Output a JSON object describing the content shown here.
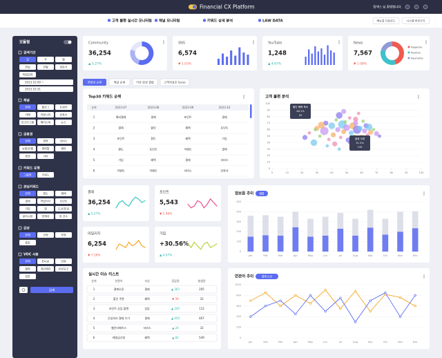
{
  "header": {
    "title": "Financial CX Platform",
    "welcome": "탐색스 님 환영합니다."
  },
  "nav": {
    "items": [
      "고객 불편 실시간 모니터링",
      "채널 모니터링",
      "키워드 상세 분석",
      "LAW DATA"
    ],
    "buttons": [
      "메뉴얼 다운로드",
      "시스템 바로가기"
    ]
  },
  "sidebar": {
    "title": "모듈형",
    "sections": [
      {
        "title": "검색기간",
        "options": [
          "일",
          "주",
          "월",
          "전일",
          "전월",
          "전분기",
          "직접입력"
        ],
        "dates": [
          "2023.10.09 ~",
          "2023.10.31"
        ]
      },
      {
        "title": "채널",
        "options": [
          "전체",
          "블로그",
          "트위터",
          "카페",
          "커뮤니티",
          "유튜브",
          "인스타그램",
          "페이스북",
          "뉴스"
        ]
      },
      {
        "title": "금융권",
        "options": [
          "전체",
          "생명",
          "서비스",
          "보험/은행",
          "캐피탈",
          "예탁",
          "증권",
          "기타"
        ]
      },
      {
        "title": "키워드 유형",
        "options": [
          "그룹명",
          "키워드"
        ]
      },
      {
        "title": "관심키워드",
        "options": [
          "전체",
          "편도",
          "혜택",
          "결제",
          "적립리더",
          "포인트",
          "가입",
          "앱",
          "도난/분실",
          "관리시장",
          "연체자",
          "외 건수"
        ]
      },
      {
        "title": "감성",
        "options": [
          "전체",
          "긍정",
          "부정",
          "중립"
        ]
      },
      {
        "title": "VOC 사용",
        "options": [
          "전체",
          "Excel",
          "민원",
          "불편",
          "개선제안",
          "보상요구",
          "칭찬"
        ]
      }
    ],
    "search": "검색"
  },
  "kpis": [
    {
      "name": "Community",
      "value": "36,254",
      "change": "▲ 5.27%",
      "chart": {
        "type": "donut",
        "values": [
          55,
          25,
          20
        ],
        "colors": [
          "#5b6cf0",
          "#aab3f5",
          "#e3e6fb"
        ]
      }
    },
    {
      "name": "SNS",
      "value": "6,574",
      "change": "▼ 1.03%",
      "chart": {
        "type": "bar",
        "values": [
          30,
          55,
          40,
          70,
          45,
          85,
          60,
          50
        ],
        "color": "#5b6cf0",
        "ylim": [
          0,
          100
        ]
      }
    },
    {
      "name": "YouTube",
      "value": "1,248",
      "change": "▲ 4.67%",
      "chart": {
        "type": "bar",
        "values": [
          40,
          75,
          55,
          90,
          65,
          80,
          50,
          95,
          70,
          60
        ],
        "color": "#5b6cf0",
        "ylim": [
          0,
          100
        ]
      }
    },
    {
      "name": "News",
      "value": "7,567",
      "change": "▼ 1.08%",
      "chart": {
        "type": "donut",
        "values": [
          45,
          35,
          20
        ],
        "colors": [
          "#ef5b4f",
          "#3fc1c9",
          "#8e9bd6"
        ],
        "legend": [
          "Negative",
          "Positive",
          "Neutrality"
        ]
      }
    }
  ],
  "tabs": [
    "연관성 순위",
    "채널 순위",
    "이상 감성 결합",
    "고객지표초 Issue"
  ],
  "keyword_ranking": {
    "title": "Top30 키워드 순위",
    "headers": [
      "순위",
      "2023-07",
      "2023-08",
      "2023-09",
      "2023-10"
    ],
    "rows": [
      [
        "1",
        "해외결제",
        "결제",
        "포인트",
        "결제"
      ],
      [
        "2",
        "결제",
        "할인",
        "혜택",
        "포인트"
      ],
      [
        "3",
        "포인트",
        "환도",
        "혜택",
        "가입"
      ],
      [
        "4",
        "환도",
        "포인트",
        "이벤트",
        "결제"
      ],
      [
        "5",
        "가입",
        "혜택",
        "결제",
        "서비스"
      ],
      [
        "6",
        "이벤트",
        "이벤트",
        "서비스",
        "인증서"
      ]
    ]
  },
  "complaint_analysis": {
    "title": "고객 불편 분석",
    "type": "scatter",
    "x": [
      22,
      25,
      28,
      30,
      32,
      35,
      36,
      38,
      40,
      41,
      43,
      44,
      45,
      46,
      47,
      48,
      49,
      50,
      51,
      52,
      53,
      54,
      55,
      56,
      57,
      58,
      59,
      60,
      61,
      62,
      63,
      64,
      65,
      66,
      68,
      70,
      72,
      42,
      37,
      33,
      29,
      48,
      52,
      56,
      45
    ],
    "y": [
      48,
      55,
      40,
      62,
      50,
      58,
      70,
      45,
      66,
      52,
      75,
      60,
      82,
      48,
      68,
      57,
      72,
      63,
      44,
      78,
      55,
      66,
      50,
      70,
      60,
      85,
      62,
      47,
      73,
      58,
      66,
      52,
      64,
      56,
      60,
      54,
      50,
      38,
      35,
      67,
      60,
      88,
      40,
      76,
      30
    ],
    "sizes": [
      3,
      2,
      4,
      3,
      2,
      5,
      3,
      2,
      4,
      3,
      2,
      3,
      4,
      2,
      5,
      3,
      2,
      4,
      3,
      2,
      3,
      4,
      2,
      3,
      5,
      2,
      3,
      4,
      2,
      3,
      3,
      2,
      4,
      3,
      2,
      3,
      2,
      3,
      2,
      4,
      2,
      3,
      2,
      3,
      2
    ],
    "colors": [
      "#8e7cf0",
      "#f08cb4",
      "#7ec8f0",
      "#f5b06b",
      "#9bd67a",
      "#c79af0"
    ],
    "xlim": [
      0,
      100
    ],
    "ylim": [
      0,
      100
    ],
    "xticks": [
      0,
      10,
      20,
      30,
      40,
      50,
      60,
      70,
      80,
      90,
      100
    ],
    "yticks": [
      0,
      10,
      20,
      30,
      40,
      50,
      60,
      70,
      80,
      90,
      100
    ],
    "annotations": [
      [
        "할인 혜택 축소",
        "46.1%",
        "55"
      ],
      [
        "결제 오류",
        "31.2%",
        "133"
      ]
    ]
  },
  "metrics": [
    {
      "name": "결제",
      "value": "36,254",
      "change": "▲ 5.27%",
      "line": {
        "values": [
          40,
          55,
          60,
          50,
          45,
          60,
          70,
          65,
          55,
          60
        ],
        "color": "#33c6c0",
        "ylim": [
          30,
          80
        ]
      }
    },
    {
      "name": "포인트",
      "value": "5,543",
      "change": "▼ 1.06%",
      "line": {
        "values": [
          50,
          40,
          45,
          60,
          55,
          40,
          50,
          65,
          55,
          45
        ],
        "color": "#e8508a",
        "ylim": [
          30,
          80
        ]
      }
    },
    {
      "name": "마일리지",
      "value": "6,254",
      "change": "▼ 7.16%",
      "line": {
        "values": [
          40,
          55,
          50,
          45,
          60,
          50,
          55,
          65,
          50,
          45
        ],
        "color": "#f5a623",
        "ylim": [
          30,
          80
        ]
      }
    },
    {
      "name": "가입",
      "value": "+30.56%",
      "change": "▲ 4.07%",
      "line": {
        "values": [
          55,
          45,
          60,
          50,
          40,
          55,
          60,
          45,
          50,
          55
        ],
        "color": "#b8d23a",
        "ylim": [
          30,
          80
        ]
      }
    }
  ],
  "source_trend": {
    "title": "정보원 추이",
    "tag": "월별",
    "type": "bar",
    "categories": [
      "Jan",
      "Feb",
      "Mar",
      "Apr",
      "May",
      "Jun",
      "Jul",
      "Aug",
      "Sep",
      "Oct",
      "Nov",
      "Dec"
    ],
    "series": [
      {
        "color": "#6f7df0",
        "values": [
          150,
          165,
          160,
          245,
          150,
          160,
          230,
          160,
          240,
          170,
          200,
          235
        ]
      },
      {
        "color": "#dcdfe8",
        "values": [
          210,
          200,
          190,
          155,
          180,
          190,
          160,
          170,
          180,
          160,
          200,
          170
        ]
      }
    ],
    "ylim": [
      0,
      500
    ],
    "yticks": [
      0,
      100,
      200,
      300,
      400,
      500
    ],
    "grid": true
  },
  "issue_list": {
    "title": "실시간 이슈 리스트",
    "headers": [
      "순위",
      "연관어",
      "속성",
      "증감량",
      "발생량"
    ],
    "rows": [
      [
        "1",
        "결제오류",
        "결제",
        "▲ 362",
        "205"
      ],
      [
        "2",
        "할인 쿠폰",
        "혜택",
        "▼ 39",
        "33"
      ],
      [
        "3",
        "포인트 상담 불편",
        "상담",
        "▲ 245",
        "112"
      ],
      [
        "4",
        "무실처리 결제 수기",
        "결제",
        "▲ 450",
        "467"
      ],
      [
        "5",
        "웹인터페이스",
        "서비스",
        "▲ 24",
        "33"
      ],
      [
        "6",
        "재발급신청",
        "혜택",
        "▲ 83",
        "549"
      ]
    ]
  },
  "keyword_trend": {
    "title": "연관어 추이",
    "tag": "결제 도유",
    "type": "line",
    "categories": [
      "Jan",
      "Feb",
      "Mar",
      "Apr",
      "May",
      "Jun",
      "Jul",
      "Aug",
      "Sep",
      "Oct",
      "Nov",
      "Dec"
    ],
    "series": [
      {
        "color": "#f5a623",
        "values": [
          700,
          850,
          600,
          800,
          650,
          900,
          550,
          880,
          500,
          820,
          760,
          600
        ]
      },
      {
        "color": "#5b6cf0",
        "values": [
          400,
          600,
          700,
          450,
          800,
          500,
          750,
          300,
          700,
          850,
          400,
          800
        ]
      }
    ],
    "ylim": [
      0,
      1000
    ],
    "yticks": [
      0,
      200,
      400,
      600,
      800,
      1000
    ],
    "grid": true
  }
}
